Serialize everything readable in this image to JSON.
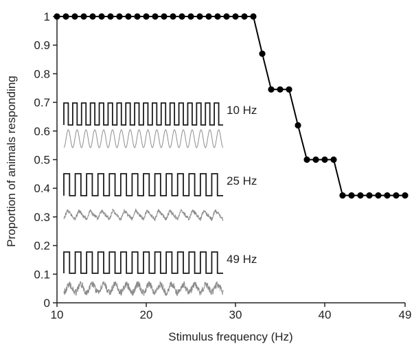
{
  "chart_data": {
    "type": "line",
    "xlabel": "Stimulus frequency (Hz)",
    "ylabel": "Proportion of animals responding",
    "xlim": [
      10,
      49
    ],
    "ylim": [
      0,
      1
    ],
    "xticks": [
      "10",
      "20",
      "30",
      "40",
      "49"
    ],
    "yticks": [
      "0",
      "0.1",
      "0.2",
      "0.3",
      "0.4",
      "0.5",
      "0.6",
      "0.7",
      "0.8",
      "0.9",
      "1"
    ],
    "grid": false,
    "series": [
      {
        "x": [
          10,
          11,
          12,
          13,
          14,
          15,
          16,
          17,
          18,
          19,
          20,
          21,
          22,
          23,
          24,
          25,
          26,
          27,
          28,
          29,
          30,
          31,
          32,
          33,
          34,
          35,
          36,
          37,
          38,
          39,
          40,
          41,
          42,
          43,
          44,
          45,
          46,
          47,
          48,
          49
        ],
        "values": [
          1,
          1,
          1,
          1,
          1,
          1,
          1,
          1,
          1,
          1,
          1,
          1,
          1,
          1,
          1,
          1,
          1,
          1,
          1,
          1,
          1,
          1,
          1,
          0.87,
          0.745,
          0.745,
          0.745,
          0.62,
          0.5,
          0.5,
          0.5,
          0.5,
          0.375,
          0.375,
          0.375,
          0.375,
          0.375,
          0.375,
          0.375,
          0.375
        ]
      }
    ],
    "insets": [
      {
        "label": "10 Hz",
        "cycles": 18,
        "trace": "sine"
      },
      {
        "label": "25 Hz",
        "cycles": 14,
        "trace": "sawtooth"
      },
      {
        "label": "49 Hz",
        "cycles": 14,
        "trace": "noisy"
      }
    ]
  }
}
